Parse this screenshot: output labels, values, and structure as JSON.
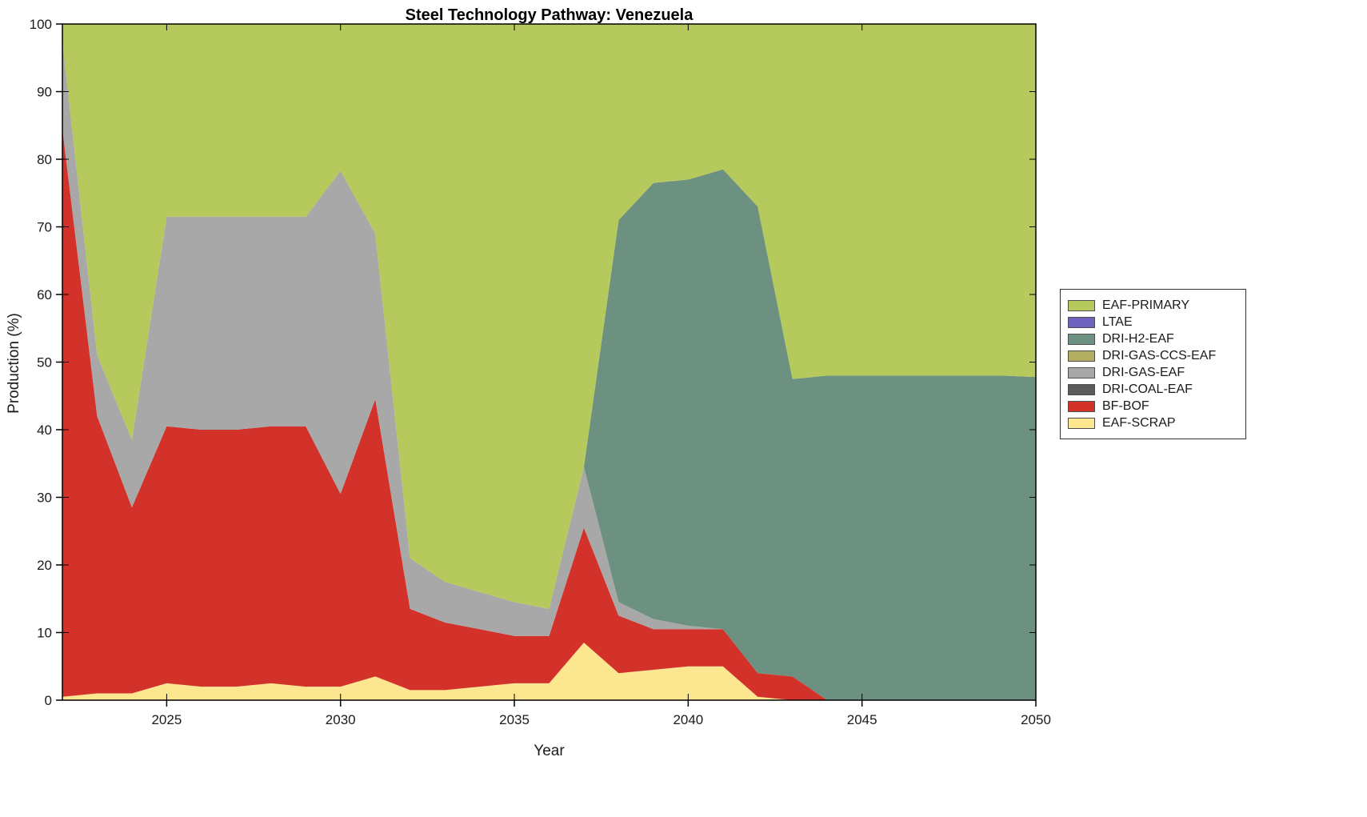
{
  "figure": {
    "background_color": "#ffffff",
    "axis_color": "#000000",
    "tick_label_color": "#1a1a1a"
  },
  "chart_data": {
    "type": "area",
    "stacked": true,
    "title": "Steel Technology Pathway: Venezuela",
    "xlabel": "Year",
    "ylabel": "Production (%)",
    "xlim": [
      2022,
      2050
    ],
    "ylim": [
      0,
      100
    ],
    "grid": false,
    "legend_position": "right-outside",
    "xticks": [
      2025,
      2030,
      2035,
      2040,
      2045,
      2050
    ],
    "yticks": [
      0,
      10,
      20,
      30,
      40,
      50,
      60,
      70,
      80,
      90,
      100
    ],
    "x": [
      2022,
      2023,
      2024,
      2025,
      2026,
      2027,
      2028,
      2029,
      2030,
      2031,
      2032,
      2033,
      2034,
      2035,
      2036,
      2037,
      2038,
      2039,
      2040,
      2041,
      2042,
      2043,
      2044,
      2045,
      2046,
      2047,
      2048,
      2049,
      2050
    ],
    "series": [
      {
        "name": "EAF-SCRAP",
        "color": "#fce68f",
        "values": [
          0.5,
          1,
          1,
          2.5,
          2,
          2,
          2.5,
          2,
          2,
          3.5,
          1.5,
          1.5,
          2,
          2.5,
          2.5,
          8.5,
          4,
          4.5,
          5,
          5,
          0.5,
          0,
          0,
          0,
          0,
          0,
          0,
          0,
          0
        ]
      },
      {
        "name": "BF-BOF",
        "color": "#d3322b",
        "values": [
          84,
          41,
          27.5,
          38,
          38,
          38,
          38,
          38.5,
          28.5,
          41,
          12,
          10,
          8.5,
          7,
          7,
          17,
          8.5,
          6,
          5.5,
          5.5,
          3.5,
          3.5,
          0,
          0,
          0,
          0,
          0,
          0,
          0
        ]
      },
      {
        "name": "DRI-COAL-EAF",
        "color": "#5a5a5a",
        "values": [
          0,
          0,
          0,
          0,
          0,
          0,
          0,
          0,
          0,
          0,
          0,
          0,
          0,
          0,
          0,
          0,
          0,
          0,
          0,
          0,
          0,
          0,
          0,
          0,
          0,
          0,
          0,
          0,
          0
        ]
      },
      {
        "name": "DRI-GAS-EAF",
        "color": "#a8a8a8",
        "values": [
          13,
          9,
          10,
          31,
          31.5,
          31.5,
          31,
          31,
          47.8,
          24.5,
          7.5,
          6,
          5.5,
          5,
          4,
          9,
          2,
          1.5,
          0.5,
          0,
          0,
          0,
          0,
          0,
          0,
          0,
          0,
          0,
          0
        ]
      },
      {
        "name": "DRI-GAS-CCS-EAF",
        "color": "#b2af63",
        "values": [
          0,
          0,
          0,
          0,
          0,
          0,
          0,
          0,
          0,
          0,
          0,
          0,
          0,
          0,
          0,
          0,
          0,
          0,
          0,
          0,
          0,
          0,
          0,
          0,
          0,
          0,
          0,
          0,
          0
        ]
      },
      {
        "name": "DRI-H2-EAF",
        "color": "#6d9180",
        "values": [
          0,
          0,
          0,
          0,
          0,
          0,
          0,
          0,
          0,
          0,
          0,
          0,
          0,
          0,
          0,
          0,
          56.5,
          64.5,
          66,
          68,
          69,
          44,
          48,
          48,
          48,
          48,
          48,
          48,
          47.8
        ]
      },
      {
        "name": "LTAE",
        "color": "#6e63be",
        "values": [
          0,
          0,
          0,
          0,
          0,
          0,
          0,
          0,
          0,
          0,
          0,
          0,
          0,
          0,
          0,
          0,
          0,
          0,
          0,
          0,
          0,
          0,
          0,
          0,
          0,
          0,
          0,
          0,
          0
        ]
      },
      {
        "name": "EAF-PRIMARY",
        "color": "#b6c95c",
        "values": [
          2.5,
          49,
          61.5,
          28.5,
          28.5,
          28.5,
          28.5,
          28.5,
          21.7,
          31,
          79,
          82.5,
          84,
          85.5,
          86.5,
          65.5,
          29,
          23.5,
          23,
          21.5,
          27,
          52.5,
          52,
          52,
          52,
          52,
          52,
          52,
          52.2
        ]
      }
    ],
    "legend_order": [
      "EAF-PRIMARY",
      "LTAE",
      "DRI-H2-EAF",
      "DRI-GAS-CCS-EAF",
      "DRI-GAS-EAF",
      "DRI-COAL-EAF",
      "BF-BOF",
      "EAF-SCRAP"
    ]
  }
}
